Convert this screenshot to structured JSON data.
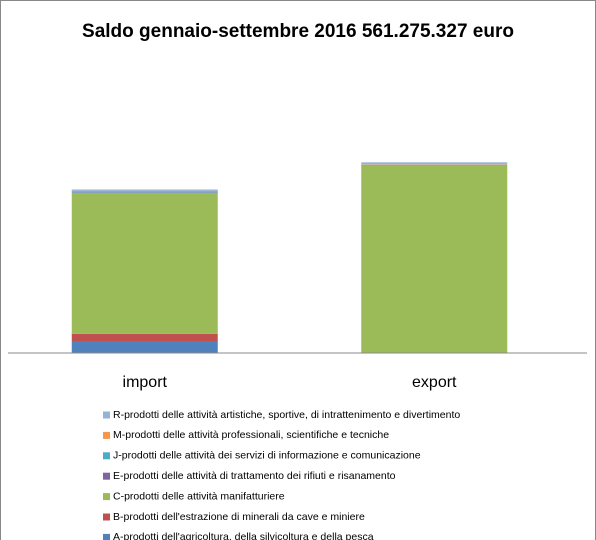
{
  "chart_data": {
    "type": "stacked_bar",
    "title": "Saldo gennaio-settembre 2016  561.275.327 euro",
    "categories": [
      "import",
      "export"
    ],
    "ylim": [
      0,
      6300
    ],
    "series": [
      {
        "name": "A-prodotti dell'agricoltura, della silvicoltura e della pesca",
        "color": "#4f81bd",
        "values": [
          230,
          5
        ]
      },
      {
        "name": "B-prodotti dell'estrazione di minerali da cave e miniere",
        "color": "#c0504d",
        "values": [
          170,
          0
        ]
      },
      {
        "name": "C-prodotti delle attività manifatturiere",
        "color": "#9bbb59",
        "values": [
          2930,
          3890
        ]
      },
      {
        "name": "E-prodotti delle attività di trattamento dei rifiuti e risanamento",
        "color": "#8064a2",
        "values": [
          10,
          0
        ]
      },
      {
        "name": "J-prodotti delle attività dei servizi di informazione e comunicazione",
        "color": "#4bacc6",
        "values": [
          20,
          20
        ]
      },
      {
        "name": "M-prodotti delle attività professionali, scientifiche e tecniche",
        "color": "#f79646",
        "values": [
          10,
          10
        ]
      },
      {
        "name": "R-prodotti delle attività artistiche, sportive, di intrattenimento e divertimento",
        "color": "#95b3d7",
        "values": [
          30,
          40
        ]
      }
    ]
  }
}
